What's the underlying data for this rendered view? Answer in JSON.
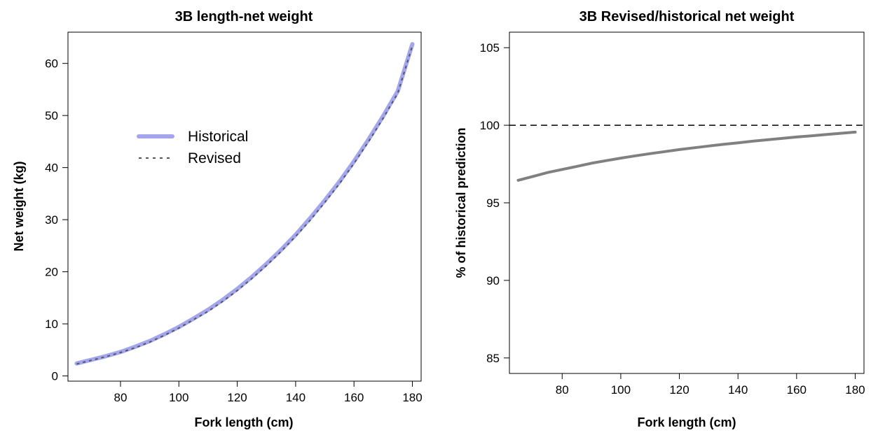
{
  "chart_data": [
    {
      "type": "line",
      "title": "3B length-net weight",
      "xlabel": "Fork length (cm)",
      "ylabel": "Net weight (kg)",
      "xlim": [
        62,
        183
      ],
      "ylim": [
        -1,
        66
      ],
      "xticks": [
        80,
        100,
        120,
        140,
        160,
        180
      ],
      "yticks": [
        0,
        10,
        20,
        30,
        40,
        50,
        60
      ],
      "grid": false,
      "legend": "center-left",
      "x": [
        65,
        70,
        75,
        80,
        85,
        90,
        95,
        100,
        105,
        110,
        115,
        120,
        125,
        130,
        135,
        140,
        145,
        150,
        155,
        160,
        165,
        170,
        175,
        180
      ],
      "series": [
        {
          "name": "Historical",
          "color": "#a3a6ec",
          "style": "solid",
          "values": [
            2.4,
            3.1,
            3.8,
            4.6,
            5.6,
            6.7,
            8.0,
            9.4,
            11.0,
            12.7,
            14.6,
            16.7,
            19.0,
            21.5,
            24.2,
            27.1,
            30.3,
            33.7,
            37.3,
            41.2,
            45.4,
            49.9,
            54.7,
            63.7
          ]
        },
        {
          "name": "Revised",
          "color": "#555566",
          "style": "dotted",
          "values": [
            2.3,
            3.0,
            3.7,
            4.5,
            5.4,
            6.5,
            7.8,
            9.2,
            10.8,
            12.4,
            14.3,
            16.4,
            18.7,
            21.2,
            23.9,
            26.8,
            29.9,
            33.3,
            36.9,
            40.8,
            45.0,
            49.5,
            54.3,
            63.4
          ]
        }
      ]
    },
    {
      "type": "line",
      "title": "3B Revised/historical net weight",
      "xlabel": "Fork length (cm)",
      "ylabel": "% of historical prediction",
      "xlim": [
        62,
        183
      ],
      "ylim": [
        84,
        106
      ],
      "xticks": [
        80,
        100,
        120,
        140,
        160,
        180
      ],
      "yticks": [
        85,
        90,
        95,
        100,
        105
      ],
      "grid": false,
      "reference_line": {
        "y": 100,
        "style": "dashed",
        "color": "#000000"
      },
      "x": [
        65,
        70,
        75,
        80,
        85,
        90,
        95,
        100,
        105,
        110,
        115,
        120,
        125,
        130,
        135,
        140,
        145,
        150,
        155,
        160,
        165,
        170,
        175,
        180
      ],
      "series": [
        {
          "color": "#808080",
          "style": "solid",
          "values": [
            96.45,
            96.7,
            96.95,
            97.15,
            97.35,
            97.55,
            97.72,
            97.88,
            98.03,
            98.17,
            98.3,
            98.43,
            98.55,
            98.66,
            98.77,
            98.87,
            98.97,
            99.06,
            99.15,
            99.24,
            99.32,
            99.4,
            99.48,
            99.56
          ]
        }
      ]
    }
  ]
}
